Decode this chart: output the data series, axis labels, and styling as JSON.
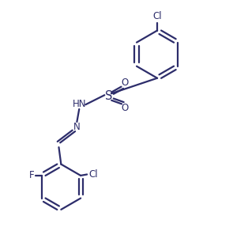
{
  "bg_color": "#ffffff",
  "line_color": "#2d2d6b",
  "linewidth": 1.6,
  "fontsize": 8.5,
  "figsize": [
    2.95,
    2.92
  ],
  "dpi": 100,
  "xlim": [
    0,
    10
  ],
  "ylim": [
    0,
    10
  ]
}
